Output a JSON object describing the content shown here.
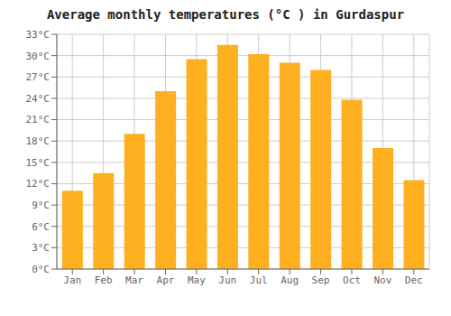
{
  "chart_data": {
    "type": "bar",
    "title": "Average monthly temperatures (°C ) in Gurdaspur",
    "categories": [
      "Jan",
      "Feb",
      "Mar",
      "Apr",
      "May",
      "Jun",
      "Jul",
      "Aug",
      "Sep",
      "Oct",
      "Nov",
      "Dec"
    ],
    "values": [
      11.0,
      13.5,
      19.0,
      25.0,
      29.5,
      31.5,
      30.2,
      29.0,
      28.0,
      23.8,
      17.0,
      12.5
    ],
    "color": "#FFB020",
    "ylim": [
      0,
      33
    ],
    "yticks": [
      {
        "value": 0,
        "label": "0°C"
      },
      {
        "value": 3,
        "label": "3°C"
      },
      {
        "value": 6,
        "label": "6°C"
      },
      {
        "value": 9,
        "label": "9°C"
      },
      {
        "value": 12,
        "label": "12°C"
      },
      {
        "value": 15,
        "label": "15°C"
      },
      {
        "value": 18,
        "label": "18°C"
      },
      {
        "value": 21,
        "label": "21°C"
      },
      {
        "value": 24,
        "label": "24°C"
      },
      {
        "value": 27,
        "label": "27°C"
      },
      {
        "value": 30,
        "label": "30°C"
      },
      {
        "value": 33,
        "label": "33°C"
      }
    ],
    "grid": true
  }
}
